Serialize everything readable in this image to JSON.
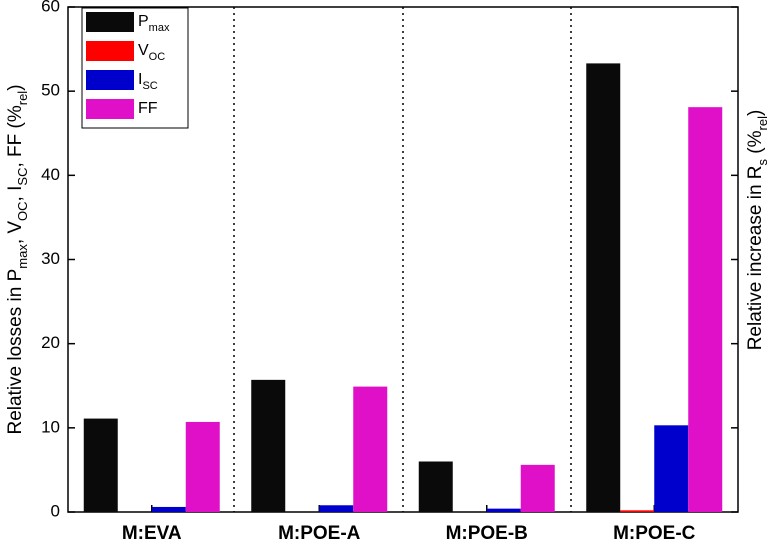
{
  "chart_data": {
    "type": "bar",
    "categories": [
      "M:EVA",
      "M:POE-A",
      "M:POE-B",
      "M:POE-C"
    ],
    "series": [
      {
        "name": "P",
        "name_sub": "max",
        "color": "#0a0a0a",
        "values": [
          11.1,
          15.7,
          6.0,
          53.3
        ]
      },
      {
        "name": "V",
        "name_sub": "OC",
        "color": "#ff0000",
        "values": [
          0,
          0,
          0,
          0.2
        ]
      },
      {
        "name": "I",
        "name_sub": "SC",
        "color": "#0000cc",
        "values": [
          0.6,
          0.8,
          0.4,
          10.3
        ]
      },
      {
        "name": "FF",
        "color": "#e010c8",
        "values": [
          10.7,
          14.9,
          5.6,
          48.1
        ]
      }
    ],
    "ylabel": [
      {
        "text": "Relative losses in P",
        "sub": false
      },
      {
        "text": "max",
        "sub": true
      },
      {
        "text": ", V",
        "sub": false
      },
      {
        "text": "OC",
        "sub": true
      },
      {
        "text": ", I",
        "sub": false
      },
      {
        "text": "SC",
        "sub": true
      },
      {
        "text": ", FF (%",
        "sub": false
      },
      {
        "text": "rel",
        "sub": true
      },
      {
        "text": ")",
        "sub": false
      }
    ],
    "y2label": [
      {
        "text": "Relative increase in R",
        "sub": false
      },
      {
        "text": "s",
        "sub": true
      },
      {
        "text": " (%",
        "sub": false
      },
      {
        "text": "rel",
        "sub": true
      },
      {
        "text": ")",
        "sub": false
      }
    ],
    "ylim": [
      0,
      60
    ],
    "yticks": [
      0,
      10,
      20,
      30,
      40,
      50,
      60
    ],
    "legend": "upper-left"
  }
}
